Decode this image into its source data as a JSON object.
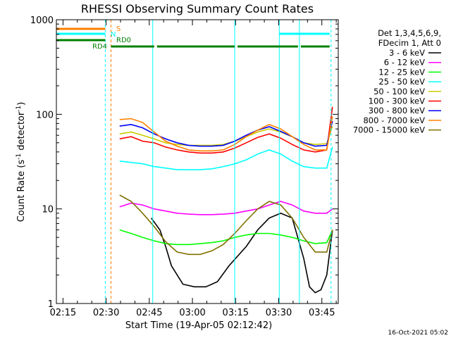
{
  "chart_data": {
    "type": "line",
    "title": "RHESSI Observing Summary Count Rates",
    "xlabel": "Start Time (19-Apr-05 02:12:42)",
    "ylabel_main": "Count Rate (s",
    "ylabel_sup1": "-1",
    "ylabel_mid": " detector",
    "ylabel_sup2": "-1",
    "ylabel_end": ")",
    "yscale": "log",
    "ylim": [
      1,
      1000
    ],
    "y_ticks": [
      1,
      10,
      100,
      1000
    ],
    "y_tick_labels": [
      "1",
      "10",
      "100",
      "1000"
    ],
    "xlim_minutes": [
      0,
      98
    ],
    "x_ticks": [
      {
        "label": "02:15",
        "minute": 2.3
      },
      {
        "label": "02:30",
        "minute": 17.3
      },
      {
        "label": "02:45",
        "minute": 32.3
      },
      {
        "label": "03:00",
        "minute": 47.3
      },
      {
        "label": "03:15",
        "minute": 62.3
      },
      {
        "label": "03:30",
        "minute": 77.3
      },
      {
        "label": "03:45",
        "minute": 92.3
      }
    ],
    "legend_header": [
      "Det 1,3,4,5,6,9,",
      "FDecim 1, Att 0"
    ],
    "legend_placement": "right",
    "series": [
      {
        "name": "3 - 6 keV",
        "color": "#000000",
        "x": [
          33,
          36,
          38,
          40,
          44,
          48,
          52,
          56,
          60,
          66,
          70,
          74,
          78,
          82,
          86,
          88,
          90,
          92,
          94,
          96
        ],
        "y": [
          8,
          6,
          4,
          2.5,
          1.6,
          1.5,
          1.5,
          1.7,
          2.5,
          4,
          6,
          8,
          9,
          8,
          3,
          1.5,
          1.3,
          1.4,
          2,
          6
        ]
      },
      {
        "name": "6 - 12 keV",
        "color": "#ff00ff",
        "x": [
          22,
          26,
          30,
          34,
          38,
          42,
          46,
          50,
          54,
          58,
          62,
          66,
          70,
          74,
          78,
          82,
          86,
          90,
          94,
          96
        ],
        "y": [
          10.5,
          11.5,
          11,
          10,
          9.5,
          9,
          8.8,
          8.7,
          8.7,
          8.8,
          9,
          9.5,
          10,
          11,
          12,
          11,
          9.5,
          9,
          9,
          10
        ]
      },
      {
        "name": "12 - 25 keV",
        "color": "#00ff00",
        "x": [
          22,
          26,
          30,
          34,
          38,
          42,
          46,
          50,
          54,
          58,
          62,
          66,
          70,
          74,
          78,
          82,
          86,
          90,
          94,
          96
        ],
        "y": [
          6,
          5.5,
          5,
          4.6,
          4.3,
          4.2,
          4.2,
          4.3,
          4.4,
          4.6,
          5,
          5.3,
          5.5,
          5.5,
          5.3,
          5,
          4.6,
          4.3,
          4.4,
          6
        ]
      },
      {
        "name": "25 - 50 keV",
        "color": "#00ffff",
        "x": [
          22,
          26,
          30,
          34,
          38,
          42,
          46,
          50,
          54,
          58,
          62,
          66,
          70,
          74,
          78,
          82,
          86,
          90,
          94,
          96
        ],
        "y": [
          32,
          31,
          30,
          28,
          27,
          26,
          26,
          26,
          26.5,
          28,
          30,
          33,
          38,
          42,
          38,
          32,
          28,
          27,
          27,
          45
        ]
      },
      {
        "name": "50 - 100 keV",
        "color": "#cccc00",
        "x": [
          22,
          26,
          30,
          34,
          38,
          42,
          46,
          50,
          54,
          58,
          62,
          66,
          70,
          74,
          78,
          82,
          86,
          90,
          94,
          96
        ],
        "y": [
          62,
          65,
          60,
          55,
          50,
          48,
          47,
          47,
          47,
          48,
          52,
          58,
          65,
          70,
          65,
          58,
          50,
          48,
          49,
          75
        ]
      },
      {
        "name": "100 - 300 keV",
        "color": "#ff0000",
        "x": [
          22,
          26,
          30,
          34,
          38,
          42,
          46,
          50,
          54,
          58,
          62,
          66,
          70,
          74,
          78,
          82,
          86,
          90,
          94,
          96
        ],
        "y": [
          55,
          58,
          52,
          50,
          45,
          42,
          40,
          39,
          39,
          40,
          44,
          50,
          57,
          62,
          56,
          48,
          42,
          40,
          42,
          120
        ]
      },
      {
        "name": "300 - 800 keV",
        "color": "#0000ff",
        "x": [
          22,
          26,
          30,
          34,
          38,
          42,
          46,
          50,
          54,
          58,
          62,
          66,
          70,
          74,
          78,
          82,
          86,
          90,
          94,
          96
        ],
        "y": [
          75,
          78,
          72,
          62,
          55,
          50,
          47,
          46,
          46,
          47,
          52,
          60,
          68,
          74,
          66,
          58,
          50,
          46,
          47,
          85
        ]
      },
      {
        "name": "800 - 7000 keV",
        "color": "#ff8000",
        "x": [
          22,
          26,
          30,
          34,
          38,
          42,
          46,
          50,
          54,
          58,
          62,
          66,
          70,
          74,
          78,
          82,
          86,
          90,
          94,
          96
        ],
        "y": [
          88,
          90,
          82,
          65,
          52,
          46,
          42,
          41,
          41,
          42,
          48,
          58,
          68,
          78,
          70,
          58,
          48,
          42,
          42,
          95
        ]
      },
      {
        "name": "7000 - 15000 keV",
        "color": "#807000",
        "x": [
          22,
          26,
          30,
          34,
          38,
          42,
          46,
          50,
          54,
          58,
          62,
          66,
          70,
          74,
          78,
          82,
          86,
          90,
          94,
          96
        ],
        "y": [
          14,
          12,
          9,
          6.5,
          4.5,
          3.5,
          3.3,
          3.3,
          3.6,
          4.2,
          5.5,
          7.5,
          10,
          12,
          11,
          8,
          5,
          3.5,
          3.5,
          6
        ]
      }
    ],
    "status_bars": [
      {
        "label": "S",
        "color": "#ff8000",
        "segments": [
          [
            0,
            17
          ]
        ]
      },
      {
        "label": "N",
        "color": "#00ffff",
        "segments": [
          [
            0,
            17
          ],
          [
            77.5,
            95
          ]
        ]
      },
      {
        "label": "RD0",
        "color": "#008000",
        "segments": [
          [
            0,
            17
          ]
        ]
      },
      {
        "label": "RD4",
        "color": "#008000",
        "segments": [
          [
            19,
            34
          ],
          [
            35,
            62
          ],
          [
            63,
            84
          ],
          [
            85,
            95
          ]
        ]
      }
    ],
    "vertical_markers": [
      {
        "minute": 17,
        "color": "#00ffff",
        "style": "dashed"
      },
      {
        "minute": 19,
        "color": "#ff8000",
        "style": "dashed"
      },
      {
        "minute": 33.5,
        "color": "#00ffff",
        "style": "solid"
      },
      {
        "minute": 62,
        "color": "#00ffff",
        "style": "solid"
      },
      {
        "minute": 77.5,
        "color": "#00ffff",
        "style": "solid"
      },
      {
        "minute": 84.5,
        "color": "#00ffff",
        "style": "solid"
      },
      {
        "minute": 95.5,
        "color": "#00ffff",
        "style": "dashed"
      }
    ]
  },
  "footer": {
    "timestamp": "16-Oct-2021 05:02"
  }
}
